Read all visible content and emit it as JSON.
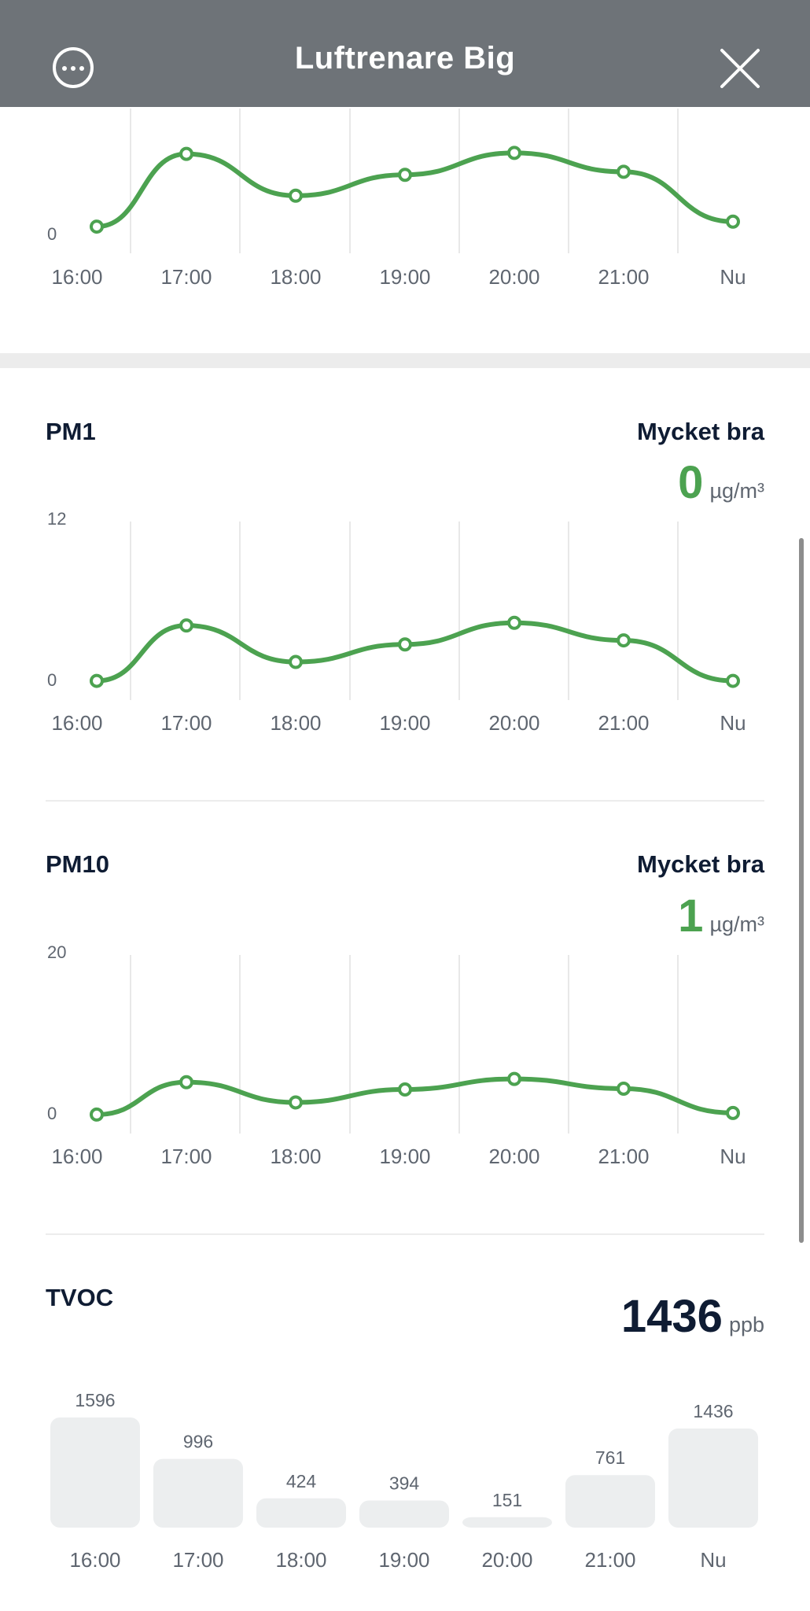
{
  "header": {
    "title": "Luftrenare Big",
    "more_icon": "more-horizontal-circle-icon",
    "close_icon": "close-icon"
  },
  "time_labels": [
    "16:00",
    "17:00",
    "18:00",
    "19:00",
    "20:00",
    "21:00",
    "Nu"
  ],
  "colors": {
    "line": "#4ca250",
    "grid": "#e8e8e8",
    "bar": "#eceeef",
    "header": "#6e7378"
  },
  "sections": {
    "top_chart": {
      "y_min_label": "0"
    },
    "pm1": {
      "title": "PM1",
      "status": "Mycket bra",
      "value": "0",
      "unit": "µg/m³",
      "y_max_label": "12",
      "y_min_label": "0"
    },
    "pm10": {
      "title": "PM10",
      "status": "Mycket bra",
      "value": "1",
      "unit": "µg/m³",
      "y_max_label": "20",
      "y_min_label": "0"
    },
    "tvoc": {
      "title": "TVOC",
      "value": "1436",
      "unit": "ppb"
    }
  },
  "chart_data": [
    {
      "type": "line",
      "x": [
        "16:00",
        "17:00",
        "18:00",
        "19:00",
        "20:00",
        "21:00",
        "Nu"
      ],
      "series": [
        {
          "values": [
            1.1,
            8.4,
            4.2,
            6.3,
            8.5,
            6.6,
            1.6
          ]
        }
      ],
      "ylim": [
        0,
        12
      ]
    },
    {
      "type": "line",
      "x": [
        "16:00",
        "17:00",
        "18:00",
        "19:00",
        "20:00",
        "21:00",
        "Nu"
      ],
      "series": [
        {
          "values": [
            0.2,
            4.3,
            1.6,
            2.9,
            4.5,
            3.2,
            0.2
          ]
        }
      ],
      "ylim": [
        0,
        12
      ]
    },
    {
      "type": "line",
      "x": [
        "16:00",
        "17:00",
        "18:00",
        "19:00",
        "20:00",
        "21:00",
        "Nu"
      ],
      "series": [
        {
          "values": [
            0.3,
            4.3,
            1.8,
            3.4,
            4.7,
            3.5,
            0.5
          ]
        }
      ],
      "ylim": [
        0,
        20
      ]
    },
    {
      "type": "bar",
      "categories": [
        "16:00",
        "17:00",
        "18:00",
        "19:00",
        "20:00",
        "21:00",
        "Nu"
      ],
      "values": [
        1596,
        996,
        424,
        394,
        151,
        761,
        1436
      ]
    }
  ]
}
